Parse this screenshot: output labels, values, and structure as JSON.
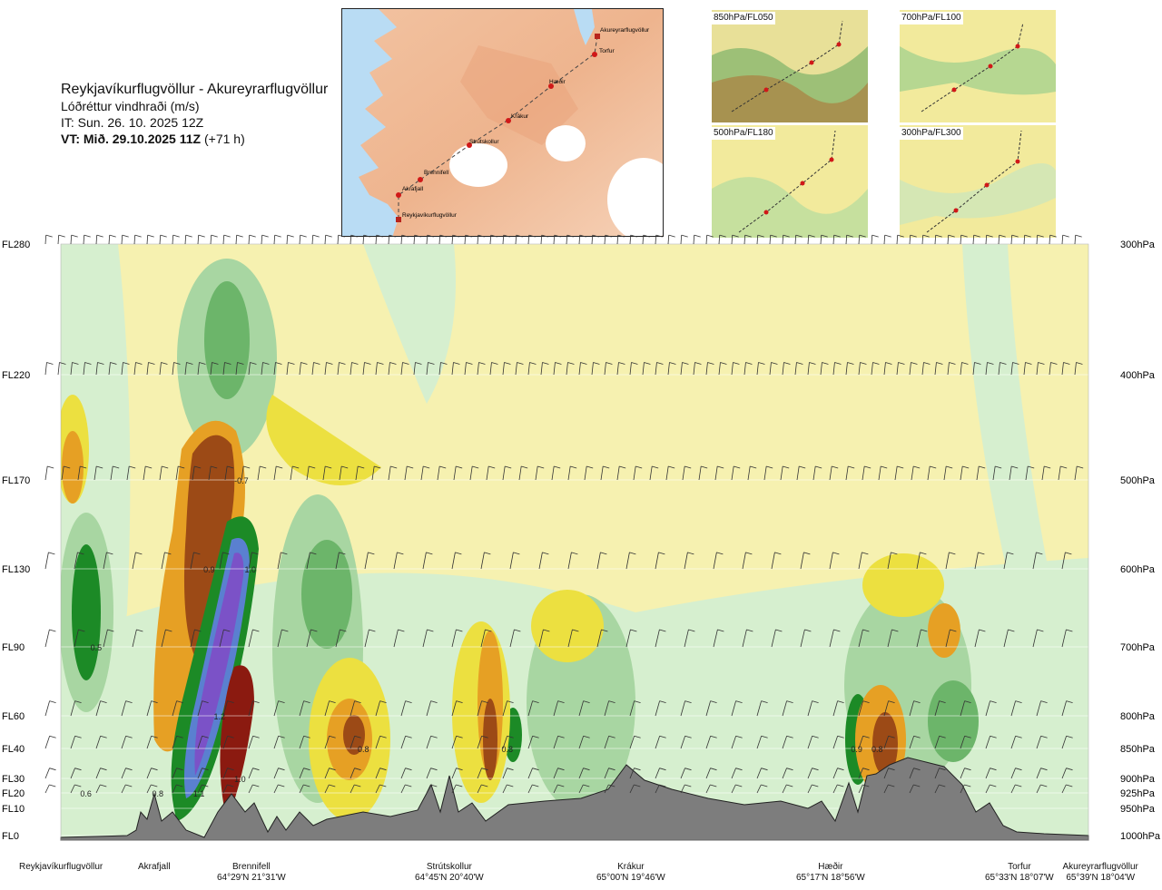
{
  "header": {
    "route": "Reykjavíkurflugvöllur - Akureyrarflugvöllur",
    "parameter": "Lóðréttur vindhraði (m/s)",
    "issue_time": "IT: Sun. 26. 10. 2025 12Z",
    "valid_label": "VT: Mið. 29.10.2025 11Z",
    "valid_offset": "(+71 h)"
  },
  "route_map": {
    "places": [
      "Akureyrarflugvöllur",
      "Torfur",
      "Hæðir",
      "Krákur",
      "Strútskollur",
      "Brennifell",
      "Akrafjall",
      "Reykjavíkurflugvöllur"
    ]
  },
  "level_maps": [
    {
      "label": "850hPa/FL050"
    },
    {
      "label": "700hPa/FL100"
    },
    {
      "label": "500hPa/FL180"
    },
    {
      "label": "300hPa/FL300"
    }
  ],
  "chart_data": {
    "type": "heatmap",
    "variable": "vertical wind speed (m/s)",
    "left_axis_labels": [
      "FL280",
      "FL220",
      "FL170",
      "FL130",
      "FL90",
      "FL60",
      "FL40",
      "FL30",
      "FL20",
      "FL10",
      "FL0"
    ],
    "right_axis_labels": [
      "300hPa",
      "400hPa",
      "500hPa",
      "600hPa",
      "700hPa",
      "800hPa",
      "850hPa",
      "900hPa",
      "925hPa",
      "950hPa",
      "1000hPa"
    ],
    "grid_lines": true,
    "waypoints": [
      {
        "name": "Reykjavíkurflugvöllur",
        "coord": ""
      },
      {
        "name": "Akrafjall",
        "coord": ""
      },
      {
        "name": "Brennifell",
        "coord": "64°29'N 21°31'W"
      },
      {
        "name": "Strútskollur",
        "coord": "64°45'N 20°40'W"
      },
      {
        "name": "Krákur",
        "coord": "65°00'N 19°46'W"
      },
      {
        "name": "Hæðir",
        "coord": "65°17'N 18°56'W"
      },
      {
        "name": "Torfur",
        "coord": "65°33'N 18°07'W"
      },
      {
        "name": "Akureyrarflugvöllur",
        "coord": "65°39'N 18°04'W"
      }
    ],
    "annotations": [
      {
        "text": "-0.7",
        "waypoint_frac": 0.16,
        "fl": 170
      },
      {
        "text": "0.9",
        "waypoint_frac": 0.13,
        "fl": 130
      },
      {
        "text": "1.0",
        "waypoint_frac": 0.17,
        "fl": 130
      },
      {
        "text": "0.5",
        "waypoint_frac": 0.02,
        "fl": 90
      },
      {
        "text": "1.2",
        "waypoint_frac": 0.14,
        "fl": 60
      },
      {
        "text": "0.8",
        "waypoint_frac": 0.28,
        "fl": 40
      },
      {
        "text": "0.8",
        "waypoint_frac": 0.42,
        "fl": 40
      },
      {
        "text": "0.9",
        "waypoint_frac": 0.76,
        "fl": 40
      },
      {
        "text": "0.8",
        "waypoint_frac": 0.78,
        "fl": 40
      },
      {
        "text": "1.0",
        "waypoint_frac": 0.16,
        "fl": 30
      },
      {
        "text": "0.6",
        "waypoint_frac": 0.01,
        "fl": 20
      },
      {
        "text": "0.8",
        "waypoint_frac": 0.08,
        "fl": 20
      },
      {
        "text": "1.1",
        "waypoint_frac": 0.12,
        "fl": 20
      }
    ]
  },
  "colors": {
    "terrain": "#7d7d7d",
    "up_strong": "#7b52c7",
    "up_blue": "#5a80d0",
    "green_dark": "#1c8a26",
    "green_mid": "#6cb56a",
    "green_light": "#a8d6a2",
    "green_pale": "#d6efcf",
    "neutral": "#f6f1b0",
    "down_yellow": "#ece040",
    "down_orange": "#e6a024",
    "down_brown": "#9c4a16",
    "down_dark": "#8b1a10"
  }
}
